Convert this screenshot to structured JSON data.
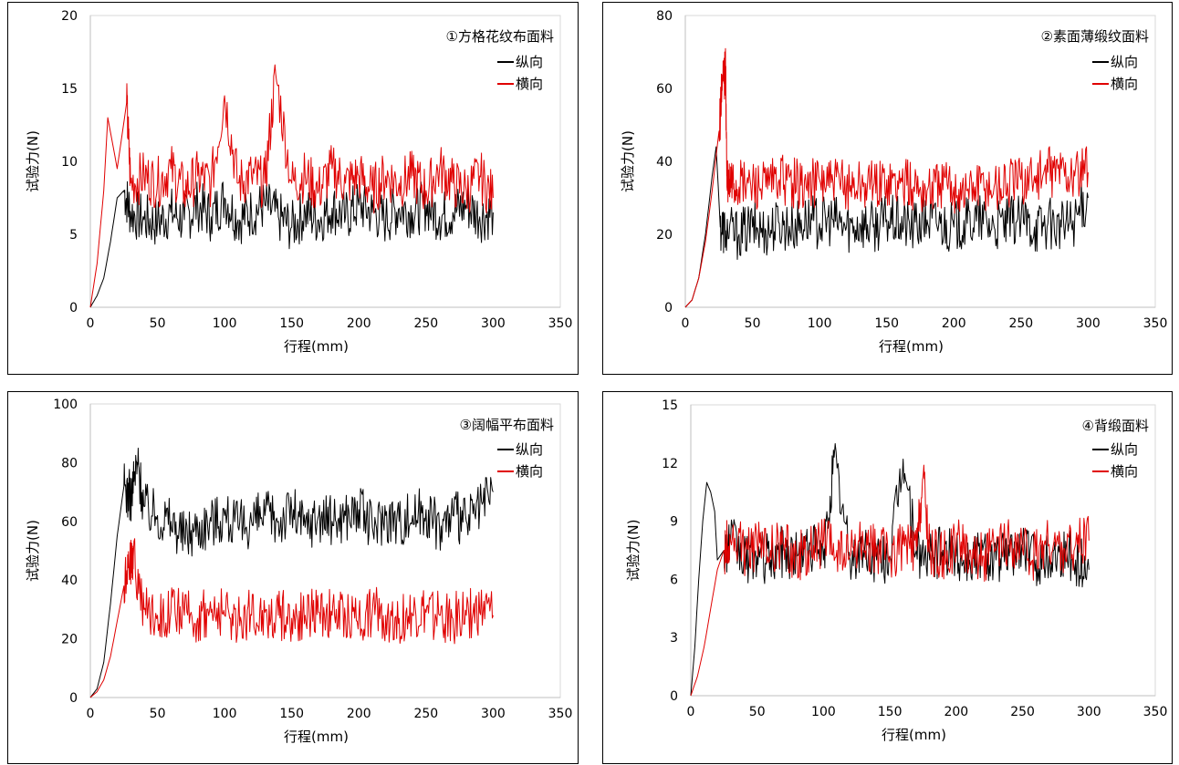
{
  "chart_data": [
    {
      "type": "line",
      "title": "①方格花纹布面料",
      "xlabel": "行程(mm)",
      "ylabel": "试验力(N)",
      "xlim": [
        0,
        350
      ],
      "ylim": [
        0,
        20
      ],
      "xticks": [
        "0",
        "50",
        "100",
        "150",
        "200",
        "250",
        "300",
        "350"
      ],
      "yticks": [
        "0",
        "5",
        "10",
        "15",
        "20"
      ],
      "grid": false,
      "legend": "top-right",
      "series": [
        {
          "name": "纵向",
          "color": "#000000",
          "x": [
            0,
            5,
            10,
            15,
            20,
            25,
            30,
            40,
            50,
            60,
            70,
            80,
            90,
            100,
            110,
            120,
            130,
            140,
            150,
            160,
            170,
            180,
            190,
            200,
            210,
            220,
            230,
            240,
            250,
            260,
            270,
            280,
            290,
            300
          ],
          "y": [
            0,
            0.8,
            2.0,
            4.5,
            7.5,
            8.0,
            6.5,
            6.0,
            5.8,
            6.5,
            6.0,
            7.0,
            6.2,
            7.5,
            6.0,
            6.5,
            7.0,
            6.2,
            5.5,
            6.5,
            6.0,
            6.8,
            6.2,
            7.0,
            6.5,
            6.0,
            6.8,
            6.5,
            7.0,
            6.2,
            6.5,
            7.0,
            6.2,
            6.5
          ]
        },
        {
          "name": "横向",
          "color": "#e00000",
          "x": [
            0,
            5,
            10,
            13,
            20,
            27,
            30,
            40,
            50,
            60,
            70,
            80,
            90,
            100,
            110,
            120,
            130,
            138,
            150,
            160,
            170,
            180,
            190,
            200,
            210,
            220,
            230,
            240,
            250,
            260,
            270,
            280,
            290,
            300
          ],
          "y": [
            0,
            3.0,
            8.0,
            13.0,
            9.5,
            14.0,
            8.5,
            9.0,
            8.5,
            9.5,
            8.0,
            9.0,
            8.5,
            14.5,
            8.5,
            9.0,
            8.5,
            16.0,
            8.5,
            9.0,
            8.0,
            9.5,
            8.5,
            9.0,
            8.0,
            9.0,
            8.5,
            9.0,
            8.0,
            9.5,
            8.5,
            8.0,
            9.0,
            7.5
          ]
        }
      ]
    },
    {
      "type": "line",
      "title": "②素面薄缎纹面料",
      "xlabel": "行程(mm)",
      "ylabel": "试验力(N)",
      "xlim": [
        0,
        350
      ],
      "ylim": [
        0,
        80
      ],
      "xticks": [
        "0",
        "50",
        "100",
        "150",
        "200",
        "250",
        "300",
        "350"
      ],
      "yticks": [
        "0",
        "20",
        "40",
        "60",
        "80"
      ],
      "grid": false,
      "legend": "top-right",
      "series": [
        {
          "name": "纵向",
          "color": "#000000",
          "x": [
            0,
            5,
            10,
            15,
            20,
            23,
            26,
            30,
            40,
            50,
            60,
            70,
            80,
            90,
            100,
            110,
            120,
            130,
            140,
            150,
            160,
            170,
            180,
            190,
            200,
            210,
            220,
            230,
            240,
            250,
            260,
            270,
            280,
            290,
            300
          ],
          "y": [
            0,
            2,
            8,
            20,
            36,
            44,
            22,
            21,
            20,
            22,
            21,
            23,
            22,
            24,
            23,
            24,
            22,
            23,
            22,
            24,
            23,
            22,
            24,
            23,
            22,
            23,
            24,
            22,
            23,
            24,
            22,
            23,
            22,
            24,
            30
          ]
        },
        {
          "name": "横向",
          "color": "#e00000",
          "x": [
            0,
            5,
            10,
            15,
            20,
            25,
            28,
            30,
            31,
            35,
            40,
            50,
            60,
            70,
            80,
            90,
            100,
            110,
            120,
            130,
            140,
            150,
            160,
            170,
            180,
            190,
            200,
            210,
            220,
            230,
            240,
            250,
            260,
            270,
            280,
            290,
            300
          ],
          "y": [
            0,
            2,
            8,
            18,
            32,
            48,
            62,
            65,
            33,
            34,
            33,
            34,
            33,
            35,
            34,
            33,
            35,
            34,
            33,
            34,
            33,
            35,
            34,
            33,
            32,
            34,
            33,
            32,
            34,
            33,
            34,
            35,
            36,
            37,
            38,
            36,
            37
          ]
        }
      ]
    },
    {
      "type": "line",
      "title": "③阔幅平布面料",
      "xlabel": "行程(mm)",
      "ylabel": "试验力(N)",
      "xlim": [
        0,
        350
      ],
      "ylim": [
        0,
        100
      ],
      "xticks": [
        "0",
        "50",
        "100",
        "150",
        "200",
        "250",
        "300",
        "350"
      ],
      "yticks": [
        "0",
        "20",
        "40",
        "60",
        "80",
        "100"
      ],
      "grid": false,
      "legend": "top-right",
      "series": [
        {
          "name": "纵向",
          "color": "#000000",
          "x": [
            0,
            5,
            10,
            15,
            20,
            25,
            30,
            35,
            40,
            50,
            60,
            70,
            80,
            90,
            100,
            110,
            120,
            130,
            140,
            150,
            160,
            170,
            180,
            190,
            200,
            210,
            220,
            230,
            240,
            250,
            260,
            270,
            280,
            290,
            300
          ],
          "y": [
            0,
            3,
            12,
            32,
            55,
            72,
            68,
            80,
            65,
            62,
            60,
            55,
            58,
            60,
            62,
            58,
            60,
            62,
            60,
            64,
            58,
            62,
            60,
            62,
            64,
            58,
            62,
            60,
            62,
            64,
            58,
            62,
            60,
            64,
            70
          ]
        },
        {
          "name": "横向",
          "color": "#e00000",
          "x": [
            0,
            5,
            10,
            15,
            20,
            25,
            30,
            32,
            40,
            50,
            60,
            70,
            80,
            90,
            100,
            110,
            120,
            130,
            140,
            150,
            160,
            170,
            180,
            190,
            200,
            210,
            220,
            230,
            240,
            250,
            260,
            270,
            280,
            290,
            300
          ],
          "y": [
            0,
            2,
            6,
            14,
            26,
            38,
            46,
            48,
            30,
            28,
            29,
            28,
            27,
            29,
            28,
            27,
            28,
            29,
            28,
            27,
            28,
            29,
            28,
            27,
            28,
            29,
            28,
            27,
            28,
            29,
            28,
            27,
            28,
            29,
            28
          ]
        }
      ]
    },
    {
      "type": "line",
      "title": "④背缎面料",
      "xlabel": "行程(mm)",
      "ylabel": "试验力(N)",
      "xlim": [
        0,
        350
      ],
      "ylim": [
        0,
        15
      ],
      "xticks": [
        "0",
        "50",
        "100",
        "150",
        "200",
        "250",
        "300",
        "350"
      ],
      "yticks": [
        "0",
        "3",
        "6",
        "9",
        "12",
        "15"
      ],
      "grid": false,
      "legend": "top-right",
      "series": [
        {
          "name": "纵向",
          "color": "#000000",
          "x": [
            0,
            3,
            6,
            9,
            12,
            15,
            18,
            20,
            25,
            30,
            40,
            50,
            60,
            70,
            80,
            90,
            100,
            108,
            120,
            130,
            140,
            150,
            160,
            170,
            180,
            190,
            200,
            210,
            220,
            230,
            240,
            250,
            260,
            270,
            280,
            290,
            300
          ],
          "y": [
            0,
            2.5,
            6.0,
            9.0,
            11.0,
            10.5,
            9.5,
            7.0,
            7.5,
            8.0,
            7.0,
            7.2,
            7.0,
            7.5,
            7.2,
            7.8,
            7.0,
            12.3,
            7.0,
            7.5,
            7.0,
            7.2,
            12.2,
            7.5,
            7.0,
            7.5,
            7.2,
            7.0,
            7.5,
            7.0,
            7.2,
            7.8,
            7.0,
            7.2,
            7.5,
            7.0,
            6.5
          ]
        },
        {
          "name": "横向",
          "color": "#e00000",
          "x": [
            0,
            5,
            10,
            15,
            20,
            25,
            30,
            40,
            50,
            60,
            70,
            80,
            90,
            100,
            110,
            120,
            130,
            140,
            150,
            160,
            170,
            175,
            180,
            190,
            200,
            210,
            220,
            230,
            240,
            250,
            260,
            270,
            280,
            290,
            300
          ],
          "y": [
            0,
            1.0,
            2.5,
            4.5,
            6.5,
            7.5,
            8.0,
            7.5,
            7.8,
            7.5,
            7.8,
            7.2,
            7.5,
            8.0,
            7.5,
            7.2,
            7.8,
            7.5,
            7.2,
            7.8,
            7.5,
            11.3,
            7.5,
            7.2,
            7.8,
            7.5,
            7.2,
            7.5,
            7.8,
            7.5,
            7.2,
            7.8,
            7.5,
            7.8,
            8.0
          ]
        }
      ]
    }
  ]
}
